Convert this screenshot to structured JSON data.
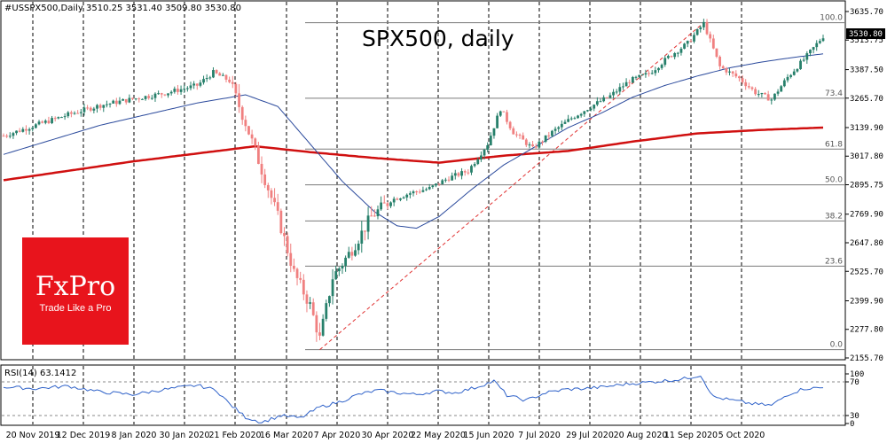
{
  "header": {
    "symbol_line": "#USSPX500,Daily  3510.25 3531.40 3509.80 3530.80",
    "title": "SPX500, daily",
    "rsi_label": "RSI(14) 63.1412",
    "last_price": "3530.80"
  },
  "logo": {
    "brand": "FxPro",
    "tagline": "Trade Like a Pro",
    "color": "#e8141c"
  },
  "colors": {
    "bull": "#27806b",
    "bear": "#f08080",
    "ma50": "#2b4a9c",
    "ma200": "#d01010",
    "fib_line": "#7a7a7a",
    "trend_line": "#e03030",
    "rsi_line": "#2f62c9"
  },
  "chart_data": {
    "type": "candlestick",
    "price_ticks": [
      "3635.70",
      "3513.75",
      "3387.50",
      "3265.70",
      "3139.90",
      "3017.80",
      "2895.75",
      "2769.90",
      "2647.80",
      "2525.70",
      "2399.90",
      "2277.80",
      "2155.70"
    ],
    "y_range": [
      2155.7,
      3635.7
    ],
    "x_ticks": [
      "20 Nov 2019",
      "12 Dec 2019",
      "8 Jan 2020",
      "30 Jan 2020",
      "21 Feb 2020",
      "16 Mar 2020",
      "7 Apr 2020",
      "30 Apr 2020",
      "22 May 2020",
      "15 Jun 2020",
      "7 Jul 2020",
      "29 Jul 2020",
      "20 Aug 2020",
      "11 Sep 2020",
      "5 Oct 2020"
    ],
    "fibonacci": [
      {
        "label": "100.0",
        "value": 3588
      },
      {
        "label": "73.4",
        "value": 3265
      },
      {
        "label": "61.8",
        "value": 3048
      },
      {
        "label": "50.0",
        "value": 2895
      },
      {
        "label": "38.2",
        "value": 2741
      },
      {
        "label": "23.6",
        "value": 2548
      },
      {
        "label": "0.0",
        "value": 2191
      }
    ],
    "price_anchors": [
      [
        0,
        3105
      ],
      [
        10,
        3150
      ],
      [
        20,
        3195
      ],
      [
        30,
        3235
      ],
      [
        40,
        3262
      ],
      [
        50,
        3287
      ],
      [
        60,
        3320
      ],
      [
        65,
        3375
      ],
      [
        70,
        3340
      ],
      [
        75,
        3160
      ],
      [
        80,
        2960
      ],
      [
        85,
        2760
      ],
      [
        90,
        2520
      ],
      [
        95,
        2380
      ],
      [
        98,
        2237
      ],
      [
        102,
        2500
      ],
      [
        108,
        2620
      ],
      [
        114,
        2760
      ],
      [
        120,
        2830
      ],
      [
        126,
        2860
      ],
      [
        132,
        2880
      ],
      [
        138,
        2925
      ],
      [
        144,
        2955
      ],
      [
        150,
        3070
      ],
      [
        154,
        3220
      ],
      [
        158,
        3120
      ],
      [
        164,
        3050
      ],
      [
        170,
        3120
      ],
      [
        176,
        3180
      ],
      [
        182,
        3230
      ],
      [
        188,
        3275
      ],
      [
        194,
        3340
      ],
      [
        200,
        3370
      ],
      [
        206,
        3440
      ],
      [
        212,
        3500
      ],
      [
        217,
        3585
      ],
      [
        222,
        3400
      ],
      [
        228,
        3350
      ],
      [
        233,
        3290
      ],
      [
        238,
        3260
      ],
      [
        243,
        3355
      ],
      [
        248,
        3430
      ],
      [
        254,
        3530
      ]
    ],
    "ma50_anchors": [
      [
        0,
        3025
      ],
      [
        30,
        3150
      ],
      [
        60,
        3245
      ],
      [
        75,
        3280
      ],
      [
        85,
        3230
      ],
      [
        95,
        3070
      ],
      [
        105,
        2910
      ],
      [
        115,
        2780
      ],
      [
        122,
        2720
      ],
      [
        128,
        2710
      ],
      [
        135,
        2760
      ],
      [
        145,
        2875
      ],
      [
        155,
        2980
      ],
      [
        165,
        3060
      ],
      [
        175,
        3140
      ],
      [
        185,
        3200
      ],
      [
        195,
        3270
      ],
      [
        205,
        3320
      ],
      [
        215,
        3360
      ],
      [
        225,
        3395
      ],
      [
        235,
        3420
      ],
      [
        245,
        3440
      ],
      [
        254,
        3455
      ]
    ],
    "ma200_anchors": [
      [
        0,
        2915
      ],
      [
        40,
        2995
      ],
      [
        78,
        3060
      ],
      [
        95,
        3035
      ],
      [
        115,
        3010
      ],
      [
        135,
        2990
      ],
      [
        155,
        3020
      ],
      [
        175,
        3040
      ],
      [
        195,
        3080
      ],
      [
        215,
        3115
      ],
      [
        235,
        3130
      ],
      [
        254,
        3140
      ]
    ],
    "trend_line": {
      "from": [
        98,
        2191
      ],
      "to": [
        217,
        3588
      ]
    },
    "rsi_ticks": [
      "100",
      "70",
      "30",
      "0"
    ],
    "rsi_levels": [
      70,
      30
    ],
    "rsi_anchors": [
      [
        0,
        64
      ],
      [
        10,
        62
      ],
      [
        20,
        65
      ],
      [
        30,
        58
      ],
      [
        40,
        55
      ],
      [
        50,
        61
      ],
      [
        60,
        66
      ],
      [
        66,
        60
      ],
      [
        70,
        44
      ],
      [
        75,
        28
      ],
      [
        80,
        22
      ],
      [
        86,
        30
      ],
      [
        92,
        27
      ],
      [
        98,
        40
      ],
      [
        104,
        46
      ],
      [
        110,
        55
      ],
      [
        116,
        60
      ],
      [
        122,
        57
      ],
      [
        128,
        55
      ],
      [
        134,
        59
      ],
      [
        140,
        57
      ],
      [
        146,
        63
      ],
      [
        152,
        71
      ],
      [
        156,
        54
      ],
      [
        162,
        48
      ],
      [
        168,
        57
      ],
      [
        174,
        61
      ],
      [
        180,
        62
      ],
      [
        186,
        64
      ],
      [
        192,
        67
      ],
      [
        198,
        69
      ],
      [
        204,
        71
      ],
      [
        210,
        73
      ],
      [
        216,
        78
      ],
      [
        220,
        52
      ],
      [
        226,
        48
      ],
      [
        232,
        44
      ],
      [
        238,
        42
      ],
      [
        243,
        55
      ],
      [
        248,
        62
      ],
      [
        254,
        63
      ]
    ]
  }
}
